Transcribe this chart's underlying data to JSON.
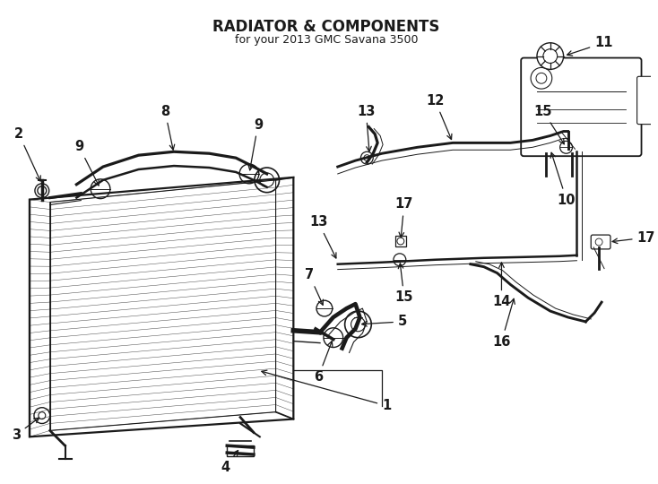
{
  "title": "RADIATOR & COMPONENTS",
  "subtitle": "for your 2013 GMC Savana 3500",
  "bg_color": "#ffffff",
  "line_color": "#1a1a1a",
  "fig_width": 7.34,
  "fig_height": 5.4,
  "dpi": 100,
  "label_fontsize": 10.5
}
